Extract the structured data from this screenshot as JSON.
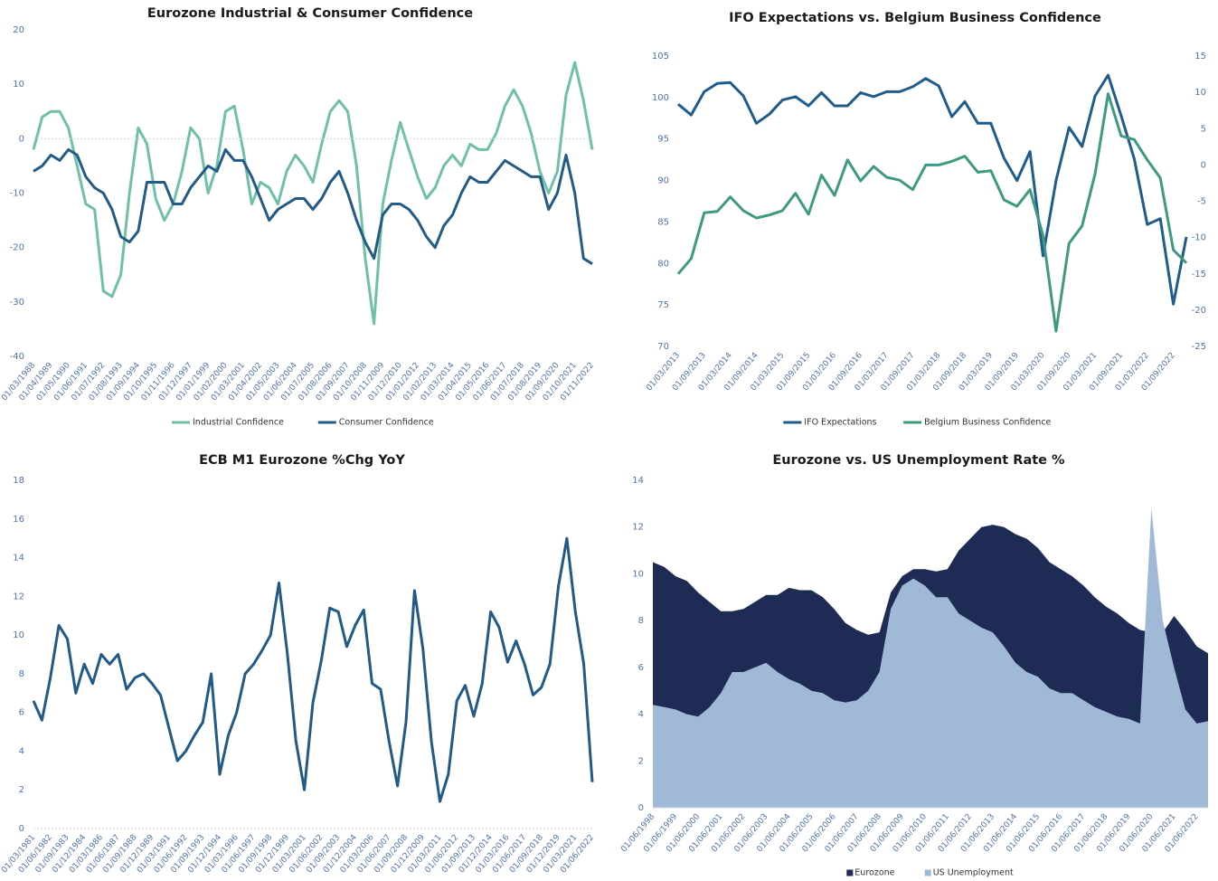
{
  "chart_data": [
    {
      "type": "line",
      "title": "Eurozone Industrial & Consumer Confidence",
      "categories": [
        "01/03/1988",
        null,
        "01/04/1989",
        null,
        "01/05/1990",
        null,
        "01/06/1991",
        null,
        "01/07/1992",
        null,
        "01/08/1993",
        null,
        "01/09/1994",
        null,
        "01/10/1995",
        null,
        "01/11/1996",
        null,
        "01/12/1997",
        null,
        "01/01/1999",
        null,
        "01/02/2000",
        null,
        "01/03/2001",
        null,
        "01/04/2002",
        null,
        "01/05/2003",
        null,
        "01/06/2004",
        null,
        "01/07/2005",
        null,
        "01/08/2006",
        null,
        "01/09/2007",
        null,
        "01/10/2008",
        null,
        "01/11/2009",
        null,
        "01/12/2010",
        null,
        "01/01/2012",
        null,
        "01/02/2013",
        null,
        "01/03/2014",
        null,
        "01/04/2015",
        null,
        "01/05/2016",
        null,
        "01/06/2017",
        null,
        "01/07/2018",
        null,
        "01/08/2019",
        null,
        "01/09/2020",
        null,
        "01/10/2021",
        null,
        "01/11/2022"
      ],
      "series": [
        {
          "name": "Industrial Confidence",
          "color": "#6fc0a8",
          "values": [
            -2,
            4,
            5,
            5,
            2,
            -5,
            -12,
            -13,
            -28,
            -29,
            -25,
            -10,
            2,
            -1,
            -11,
            -15,
            -12,
            -6,
            2,
            0,
            -10,
            -5,
            5,
            6,
            -2,
            -12,
            -8,
            -9,
            -12,
            -6,
            -3,
            -5,
            -8,
            -1,
            5,
            7,
            5,
            -5,
            -22,
            -34,
            -12,
            -4,
            3,
            -2,
            -7,
            -11,
            -9,
            -5,
            -3,
            -5,
            -1,
            -2,
            -2,
            1,
            6,
            9,
            6,
            1,
            -6,
            -10,
            -6,
            8,
            14,
            7,
            -2
          ]
        },
        {
          "name": "Consumer Confidence",
          "color": "#235b86",
          "values": [
            -6,
            -5,
            -3,
            -4,
            -2,
            -3,
            -7,
            -9,
            -10,
            -13,
            -18,
            -19,
            -17,
            -8,
            -8,
            -8,
            -12,
            -12,
            -9,
            -7,
            -5,
            -6,
            -2,
            -4,
            -4,
            -7,
            -11,
            -15,
            -13,
            -12,
            -11,
            -11,
            -13,
            -11,
            -8,
            -6,
            -10,
            -15,
            -19,
            -22,
            -14,
            -12,
            -12,
            -13,
            -15,
            -18,
            -20,
            -16,
            -14,
            -10,
            -7,
            -8,
            -8,
            -6,
            -4,
            -5,
            -6,
            -7,
            -7,
            -13,
            -10,
            -3,
            -10,
            -22,
            -23
          ]
        }
      ],
      "ylim": [
        -40,
        20
      ],
      "yticks": [
        -40,
        -30,
        -20,
        -10,
        0,
        10,
        20
      ],
      "zero_line": true,
      "legend": "bottom"
    },
    {
      "type": "line",
      "title": "IFO Expectations vs. Belgium Business Confidence",
      "categories": [
        "01/03/2013",
        null,
        "01/09/2013",
        null,
        "01/03/2014",
        null,
        "01/09/2014",
        null,
        "01/03/2015",
        null,
        "01/09/2015",
        null,
        "01/03/2016",
        null,
        "01/09/2016",
        null,
        "01/03/2017",
        null,
        "01/09/2017",
        null,
        "01/03/2018",
        null,
        "01/09/2018",
        null,
        "01/03/2019",
        null,
        "01/09/2019",
        null,
        "01/03/2020",
        null,
        "01/09/2020",
        null,
        "01/03/2021",
        null,
        "01/09/2021",
        null,
        "01/03/2022",
        null,
        "01/09/2022",
        null
      ],
      "series": [
        {
          "name": "IFO Expectations",
          "color": "#1f5c8b",
          "values": [
            99.2,
            97.9,
            100.7,
            101.7,
            101.8,
            100.2,
            96.9,
            98,
            99.7,
            100.1,
            99,
            100.6,
            99,
            99,
            100.6,
            100.1,
            100.7,
            100.7,
            101.3,
            102.3,
            101.4,
            97.7,
            99.5,
            96.9,
            96.9,
            92.7,
            90,
            93.5,
            80.9,
            90,
            96.4,
            94.1,
            100.2,
            102.7,
            97.8,
            92.6,
            84.7,
            85.4,
            75.1,
            83.2
          ]
        },
        {
          "name": "Belgium Business Confidence",
          "color": "#3d9a80",
          "axis": "y2",
          "values": [
            -15,
            -12.9,
            -6.6,
            -6.4,
            -4.4,
            -6.3,
            -7.3,
            -6.9,
            -6.3,
            -3.9,
            -6.8,
            -1.4,
            -4.2,
            0.7,
            -2.2,
            -0.2,
            -1.7,
            -2.1,
            -3.4,
            0,
            0,
            0.5,
            1.2,
            -1,
            -0.8,
            -4.8,
            -5.7,
            -3.4,
            -9.7,
            -22.9,
            -10.8,
            -8.4,
            -1.2,
            9.8,
            4,
            3.5,
            0.7,
            -1.8,
            -11.7,
            -13.5
          ]
        }
      ],
      "ylim": [
        70,
        105
      ],
      "yticks": [
        70,
        75,
        80,
        85,
        90,
        95,
        100,
        105
      ],
      "y2lim": [
        -25,
        15
      ],
      "y2ticks": [
        -25,
        -20,
        -15,
        -10,
        -5,
        0,
        5,
        10,
        15
      ],
      "legend": "bottom"
    },
    {
      "type": "line",
      "title": "ECB M1 Eurozone %Chg YoY",
      "categories": [
        "01/03/1981",
        null,
        "01/06/1982",
        null,
        "01/09/1983",
        null,
        "01/12/1984",
        null,
        "01/03/1986",
        null,
        "01/06/1987",
        null,
        "01/09/1988",
        null,
        "01/12/1989",
        null,
        "01/03/1991",
        null,
        "01/06/1992",
        null,
        "01/09/1993",
        null,
        "01/12/1994",
        null,
        "01/03/1996",
        null,
        "01/06/1997",
        null,
        "01/09/1998",
        null,
        "01/12/1999",
        null,
        "01/03/2001",
        null,
        "01/06/2002",
        null,
        "01/09/2003",
        null,
        "01/12/2004",
        null,
        "01/03/2006",
        null,
        "01/06/2007",
        null,
        "01/09/2008",
        null,
        "01/12/2009",
        null,
        "01/03/2011",
        null,
        "01/06/2012",
        null,
        "01/09/2013",
        null,
        "01/12/2014",
        null,
        "01/03/2016",
        null,
        "01/06/2017",
        null,
        "01/09/2018",
        null,
        "01/12/2019",
        null,
        "01/03/2021",
        null,
        "01/06/2022"
      ],
      "values": [
        6.6,
        5.6,
        7.8,
        10.5,
        9.8,
        7,
        8.5,
        7.5,
        9,
        8.5,
        9,
        7.2,
        7.8,
        8,
        7.5,
        6.9,
        5.2,
        3.5,
        4,
        4.8,
        5.5,
        8,
        2.8,
        4.8,
        6,
        8,
        8.5,
        9.2,
        10,
        12.7,
        9,
        4.5,
        2.0,
        6.5,
        8.7,
        11.4,
        11.2,
        9.4,
        10.5,
        11.3,
        7.5,
        7.2,
        4.5,
        2.2,
        5.5,
        12.3,
        9.3,
        4.5,
        1.4,
        2.8,
        6.6,
        7.4,
        5.8,
        7.5,
        11.2,
        10.4,
        8.6,
        9.7,
        8.5,
        6.9,
        7.3,
        8.5,
        12.5,
        15,
        11.2,
        8.5,
        2.4
      ],
      "color": "#215a86",
      "ylim": [
        0,
        18
      ],
      "yticks": [
        0,
        2,
        4,
        6,
        8,
        10,
        12,
        14,
        16,
        18
      ],
      "zero_line": true
    },
    {
      "type": "area",
      "title": "Eurozone vs. US Unemployment Rate %",
      "categories": [
        "01/06/1998",
        null,
        "01/06/1999",
        null,
        "01/06/2000",
        null,
        "01/06/2001",
        null,
        "01/06/2002",
        null,
        "01/06/2003",
        null,
        "01/06/2004",
        null,
        "01/06/2005",
        null,
        "01/06/2006",
        null,
        "01/06/2007",
        null,
        "01/06/2008",
        null,
        "01/06/2009",
        null,
        "01/06/2010",
        null,
        "01/06/2011",
        null,
        "01/06/2012",
        null,
        "01/06/2013",
        null,
        "01/06/2014",
        null,
        "01/06/2015",
        null,
        "01/06/2016",
        null,
        "01/06/2017",
        null,
        "01/06/2018",
        null,
        "01/06/2019",
        null,
        "01/06/2020",
        null,
        "01/06/2021",
        null,
        "01/06/2022",
        null
      ],
      "series": [
        {
          "name": "Eurozone",
          "color": "#1e2c55",
          "values": [
            10.5,
            10.3,
            9.9,
            9.7,
            9.2,
            8.8,
            8.4,
            8.4,
            8.5,
            8.8,
            9.1,
            9.1,
            9.4,
            9.3,
            9.3,
            9.0,
            8.5,
            7.9,
            7.6,
            7.4,
            7.5,
            9.2,
            9.9,
            10.2,
            10.2,
            10.1,
            10.2,
            11.0,
            11.5,
            12.0,
            12.1,
            12.0,
            11.7,
            11.5,
            11.1,
            10.5,
            10.2,
            9.9,
            9.5,
            9.0,
            8.6,
            8.3,
            7.9,
            7.6,
            7.5,
            7.5,
            8.2,
            7.6,
            6.9,
            6.6
          ]
        },
        {
          "name": "US Unemployment",
          "color": "#a0b9d6",
          "values": [
            4.4,
            4.3,
            4.2,
            4.0,
            3.9,
            4.3,
            4.9,
            5.8,
            5.8,
            6.0,
            6.2,
            5.8,
            5.5,
            5.3,
            5.0,
            4.9,
            4.6,
            4.5,
            4.6,
            5.0,
            5.8,
            8.5,
            9.5,
            9.8,
            9.5,
            9.0,
            9.0,
            8.3,
            8.0,
            7.7,
            7.5,
            6.9,
            6.2,
            5.8,
            5.6,
            5.1,
            4.9,
            4.9,
            4.6,
            4.3,
            4.1,
            3.9,
            3.8,
            3.6,
            12.8,
            8.0,
            6.0,
            4.2,
            3.6,
            3.7
          ]
        }
      ],
      "ylim": [
        0,
        14
      ],
      "yticks": [
        0,
        2,
        4,
        6,
        8,
        10,
        12,
        14
      ],
      "zero_line": true,
      "legend": "bottom"
    }
  ]
}
